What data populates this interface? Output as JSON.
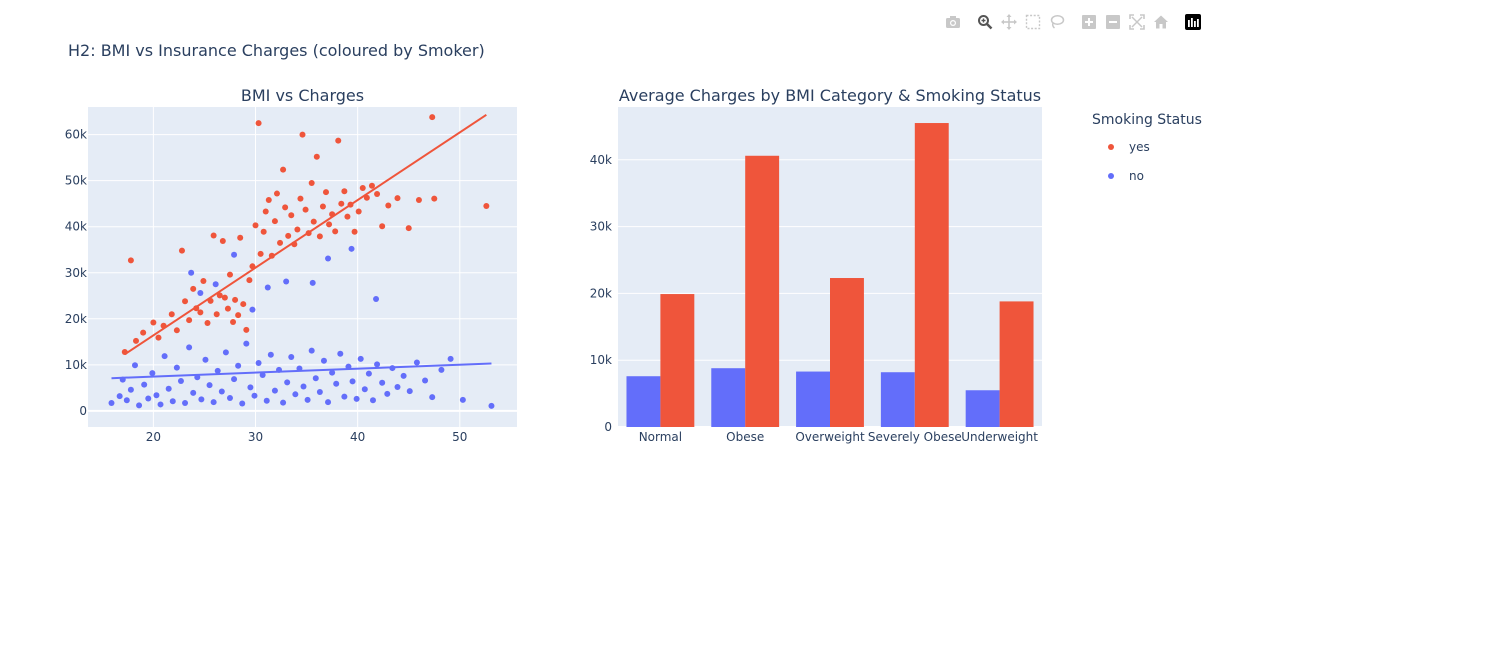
{
  "title": "H2: BMI vs Insurance Charges (coloured by Smoker)",
  "modebar": {
    "icons": [
      "camera-icon",
      "zoom-icon",
      "pan-icon",
      "box-select-icon",
      "lasso-icon",
      "zoom-in-icon",
      "zoom-out-icon",
      "autoscale-icon",
      "reset-axes-icon",
      "plotly-logo-icon"
    ]
  },
  "legend": {
    "title": "Smoking Status",
    "items": [
      {
        "label": "yes",
        "color": "#EF553B"
      },
      {
        "label": "no",
        "color": "#636EFA"
      }
    ]
  },
  "chart_data": [
    {
      "type": "scatter",
      "title": "BMI vs Charges",
      "xlabel": "",
      "ylabel": "",
      "xlim": [
        13.6,
        55.6
      ],
      "ylim": [
        -3500,
        66000
      ],
      "xticks": [
        20,
        30,
        40,
        50
      ],
      "yticks": [
        0,
        10000,
        20000,
        30000,
        40000,
        50000,
        60000
      ],
      "ytick_labels": [
        "0",
        "10k",
        "20k",
        "30k",
        "40k",
        "50k",
        "60k"
      ],
      "grid": true,
      "series": [
        {
          "name": "yes",
          "color": "#EF553B",
          "points": [
            [
              17.2,
              12800
            ],
            [
              17.8,
              32700
            ],
            [
              18.3,
              15200
            ],
            [
              19.0,
              17000
            ],
            [
              20.0,
              19200
            ],
            [
              20.5,
              15900
            ],
            [
              21.0,
              18500
            ],
            [
              21.8,
              21000
            ],
            [
              22.3,
              17500
            ],
            [
              22.8,
              34800
            ],
            [
              23.1,
              23800
            ],
            [
              23.5,
              19700
            ],
            [
              23.9,
              26500
            ],
            [
              24.2,
              22300
            ],
            [
              24.6,
              21400
            ],
            [
              24.9,
              28200
            ],
            [
              25.3,
              19100
            ],
            [
              25.6,
              23900
            ],
            [
              25.9,
              38100
            ],
            [
              26.2,
              21000
            ],
            [
              26.5,
              25100
            ],
            [
              26.8,
              36900
            ],
            [
              27.0,
              24600
            ],
            [
              27.3,
              22200
            ],
            [
              27.5,
              29600
            ],
            [
              27.8,
              19300
            ],
            [
              28.0,
              24100
            ],
            [
              28.3,
              20800
            ],
            [
              28.5,
              37600
            ],
            [
              28.8,
              23200
            ],
            [
              29.1,
              17600
            ],
            [
              29.4,
              28400
            ],
            [
              29.7,
              31400
            ],
            [
              30.0,
              40300
            ],
            [
              30.3,
              62500
            ],
            [
              30.5,
              34100
            ],
            [
              30.8,
              38900
            ],
            [
              31.0,
              43300
            ],
            [
              31.3,
              45800
            ],
            [
              31.6,
              33700
            ],
            [
              31.9,
              41200
            ],
            [
              32.1,
              47200
            ],
            [
              32.4,
              36500
            ],
            [
              32.7,
              52400
            ],
            [
              32.9,
              44200
            ],
            [
              33.2,
              38000
            ],
            [
              33.5,
              42500
            ],
            [
              33.8,
              36200
            ],
            [
              34.1,
              39400
            ],
            [
              34.4,
              46100
            ],
            [
              34.6,
              60000
            ],
            [
              34.9,
              43700
            ],
            [
              35.2,
              38600
            ],
            [
              35.5,
              49500
            ],
            [
              35.7,
              41100
            ],
            [
              36.0,
              55200
            ],
            [
              36.3,
              37900
            ],
            [
              36.6,
              44400
            ],
            [
              36.9,
              47500
            ],
            [
              37.2,
              40500
            ],
            [
              37.5,
              42700
            ],
            [
              37.8,
              39000
            ],
            [
              38.1,
              58700
            ],
            [
              38.4,
              45000
            ],
            [
              38.7,
              47700
            ],
            [
              39.0,
              42200
            ],
            [
              39.3,
              44800
            ],
            [
              39.7,
              38900
            ],
            [
              40.1,
              43300
            ],
            [
              40.5,
              48400
            ],
            [
              40.9,
              46300
            ],
            [
              41.4,
              48900
            ],
            [
              41.9,
              47100
            ],
            [
              42.4,
              40100
            ],
            [
              43.0,
              44600
            ],
            [
              43.9,
              46200
            ],
            [
              45.0,
              39700
            ],
            [
              46.0,
              45800
            ],
            [
              47.3,
              63800
            ],
            [
              47.5,
              46100
            ],
            [
              52.6,
              44500
            ]
          ]
        },
        {
          "name": "no",
          "color": "#636EFA",
          "points": [
            [
              15.9,
              1700
            ],
            [
              16.7,
              3200
            ],
            [
              17.0,
              6800
            ],
            [
              17.4,
              2300
            ],
            [
              17.8,
              4600
            ],
            [
              18.2,
              9900
            ],
            [
              18.6,
              1200
            ],
            [
              19.1,
              5700
            ],
            [
              19.5,
              2700
            ],
            [
              19.9,
              8200
            ],
            [
              20.3,
              3400
            ],
            [
              20.7,
              1400
            ],
            [
              21.1,
              11900
            ],
            [
              21.5,
              4800
            ],
            [
              21.9,
              2100
            ],
            [
              22.3,
              9400
            ],
            [
              22.7,
              6500
            ],
            [
              23.1,
              1700
            ],
            [
              23.5,
              13800
            ],
            [
              23.9,
              3900
            ],
            [
              24.3,
              7300
            ],
            [
              24.7,
              2500
            ],
            [
              25.1,
              11100
            ],
            [
              25.5,
              5600
            ],
            [
              25.9,
              1900
            ],
            [
              26.3,
              8700
            ],
            [
              26.7,
              4200
            ],
            [
              27.1,
              12700
            ],
            [
              27.5,
              2800
            ],
            [
              27.9,
              6900
            ],
            [
              28.3,
              9800
            ],
            [
              28.7,
              1600
            ],
            [
              29.1,
              14600
            ],
            [
              29.5,
              5100
            ],
            [
              29.9,
              3300
            ],
            [
              30.3,
              10400
            ],
            [
              30.7,
              7800
            ],
            [
              31.1,
              2200
            ],
            [
              31.5,
              12200
            ],
            [
              31.9,
              4400
            ],
            [
              32.3,
              8900
            ],
            [
              32.7,
              1800
            ],
            [
              33.1,
              6200
            ],
            [
              33.5,
              11700
            ],
            [
              33.9,
              3600
            ],
            [
              34.3,
              9200
            ],
            [
              34.7,
              5300
            ],
            [
              35.1,
              2400
            ],
            [
              35.5,
              13100
            ],
            [
              35.9,
              7100
            ],
            [
              36.3,
              4100
            ],
            [
              36.7,
              10900
            ],
            [
              37.1,
              1900
            ],
            [
              37.5,
              8300
            ],
            [
              37.9,
              5900
            ],
            [
              38.3,
              12400
            ],
            [
              38.7,
              3100
            ],
            [
              39.1,
              9600
            ],
            [
              39.5,
              6400
            ],
            [
              39.9,
              2600
            ],
            [
              40.3,
              11300
            ],
            [
              40.7,
              4700
            ],
            [
              41.1,
              8100
            ],
            [
              41.5,
              2300
            ],
            [
              41.9,
              10100
            ],
            [
              42.4,
              6100
            ],
            [
              42.9,
              3700
            ],
            [
              43.4,
              9300
            ],
            [
              43.9,
              5200
            ],
            [
              44.5,
              7600
            ],
            [
              45.1,
              4300
            ],
            [
              45.8,
              10500
            ],
            [
              46.6,
              6600
            ],
            [
              47.3,
              3000
            ],
            [
              48.2,
              8900
            ],
            [
              49.1,
              11300
            ],
            [
              50.3,
              2400
            ],
            [
              53.1,
              1100
            ],
            [
              23.7,
              30000
            ],
            [
              24.6,
              25600
            ],
            [
              26.1,
              27500
            ],
            [
              27.9,
              33900
            ],
            [
              29.7,
              22000
            ],
            [
              31.2,
              26800
            ],
            [
              33.0,
              28100
            ],
            [
              35.6,
              27800
            ],
            [
              37.1,
              33100
            ],
            [
              39.4,
              35200
            ],
            [
              41.8,
              24300
            ]
          ]
        }
      ],
      "trendlines": [
        {
          "name": "yes",
          "color": "#EF553B",
          "x": [
            17.2,
            52.6
          ],
          "y": [
            12300,
            64300
          ]
        },
        {
          "name": "no",
          "color": "#636EFA",
          "x": [
            15.9,
            53.1
          ],
          "y": [
            7100,
            10300
          ]
        }
      ]
    },
    {
      "type": "bar",
      "title": "Average Charges by BMI Category & Smoking Status",
      "xlabel": "",
      "ylabel": "",
      "categories": [
        "Normal",
        "Obese",
        "Overweight",
        "Severely Obese",
        "Underweight"
      ],
      "ylim": [
        0,
        47900
      ],
      "yticks": [
        0,
        10000,
        20000,
        30000,
        40000
      ],
      "ytick_labels": [
        "0",
        "10k",
        "20k",
        "30k",
        "40k"
      ],
      "grid": true,
      "series": [
        {
          "name": "no",
          "color": "#636EFA",
          "values": [
            7600,
            8800,
            8300,
            8200,
            5500
          ]
        },
        {
          "name": "yes",
          "color": "#EF553B",
          "values": [
            19900,
            40600,
            22300,
            45500,
            18800
          ]
        }
      ]
    }
  ]
}
